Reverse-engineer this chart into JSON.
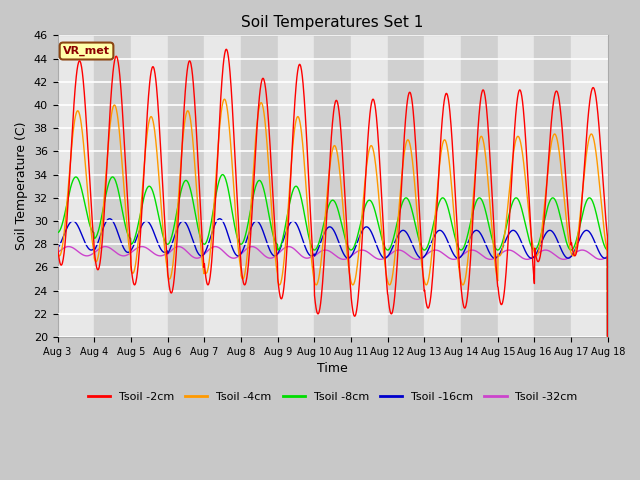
{
  "title": "Soil Temperatures Set 1",
  "xlabel": "Time",
  "ylabel": "Soil Temperature (C)",
  "ylim": [
    20,
    46
  ],
  "xlim": [
    0,
    15
  ],
  "x_tick_labels": [
    "Aug 3",
    "Aug 4",
    "Aug 5",
    "Aug 6",
    "Aug 7",
    "Aug 8",
    "Aug 9",
    "Aug 10",
    "Aug 11",
    "Aug 12",
    "Aug 13",
    "Aug 14",
    "Aug 15",
    "Aug 16",
    "Aug 17",
    "Aug 18"
  ],
  "legend_labels": [
    "Tsoil -2cm",
    "Tsoil -4cm",
    "Tsoil -8cm",
    "Tsoil -16cm",
    "Tsoil -32cm"
  ],
  "line_colors": [
    "#ff0000",
    "#ff9900",
    "#00dd00",
    "#0000cc",
    "#cc44cc"
  ],
  "annotation_text": "VR_met",
  "n_days": 15,
  "pts_per_day": 96,
  "peak_phase": 0.6,
  "phase_offsets": [
    0.0,
    0.05,
    0.1,
    0.18,
    0.3
  ],
  "peak2": [
    43.8,
    44.2,
    43.3,
    43.8,
    44.8,
    42.3,
    43.5,
    40.4,
    40.5,
    41.1,
    41.0,
    41.3,
    41.3,
    41.2,
    41.5
  ],
  "trough2": [
    26.2,
    25.8,
    24.5,
    23.8,
    24.5,
    24.5,
    23.3,
    22.0,
    21.8,
    22.0,
    22.5,
    22.5,
    22.8,
    26.5,
    27.0
  ],
  "peak4": [
    39.5,
    40.0,
    39.0,
    39.5,
    40.5,
    40.2,
    39.0,
    36.5,
    36.5,
    37.0,
    37.0,
    37.3,
    37.3,
    37.5,
    37.5
  ],
  "trough4": [
    27.0,
    26.5,
    25.5,
    25.0,
    25.5,
    25.0,
    24.5,
    24.5,
    24.5,
    24.5,
    24.5,
    24.5,
    27.0,
    27.0,
    27.0
  ],
  "peak8": [
    33.8,
    33.8,
    33.0,
    33.5,
    34.0,
    33.5,
    33.0,
    31.8,
    31.8,
    32.0,
    32.0,
    32.0,
    32.0,
    32.0,
    32.0
  ],
  "trough8": [
    29.0,
    28.5,
    28.0,
    28.0,
    28.0,
    28.0,
    27.5,
    27.5,
    27.5,
    27.5,
    27.5,
    27.5,
    27.5,
    27.5,
    27.5
  ],
  "peak16": [
    30.0,
    30.2,
    30.0,
    30.0,
    30.2,
    30.0,
    30.0,
    29.5,
    29.5,
    29.2,
    29.2,
    29.2,
    29.2,
    29.2,
    29.2
  ],
  "trough16": [
    27.5,
    27.3,
    27.3,
    27.0,
    27.0,
    27.0,
    27.0,
    26.8,
    26.8,
    26.8,
    26.8,
    26.8,
    26.8,
    26.8,
    26.8
  ],
  "peak32": [
    27.8,
    27.8,
    27.8,
    27.8,
    27.8,
    27.8,
    27.8,
    27.5,
    27.5,
    27.5,
    27.5,
    27.5,
    27.5,
    27.5,
    27.5
  ],
  "trough32": [
    27.0,
    27.0,
    27.0,
    26.8,
    26.8,
    26.8,
    26.8,
    26.7,
    26.7,
    26.7,
    26.7,
    26.7,
    26.7,
    26.7,
    26.7
  ]
}
